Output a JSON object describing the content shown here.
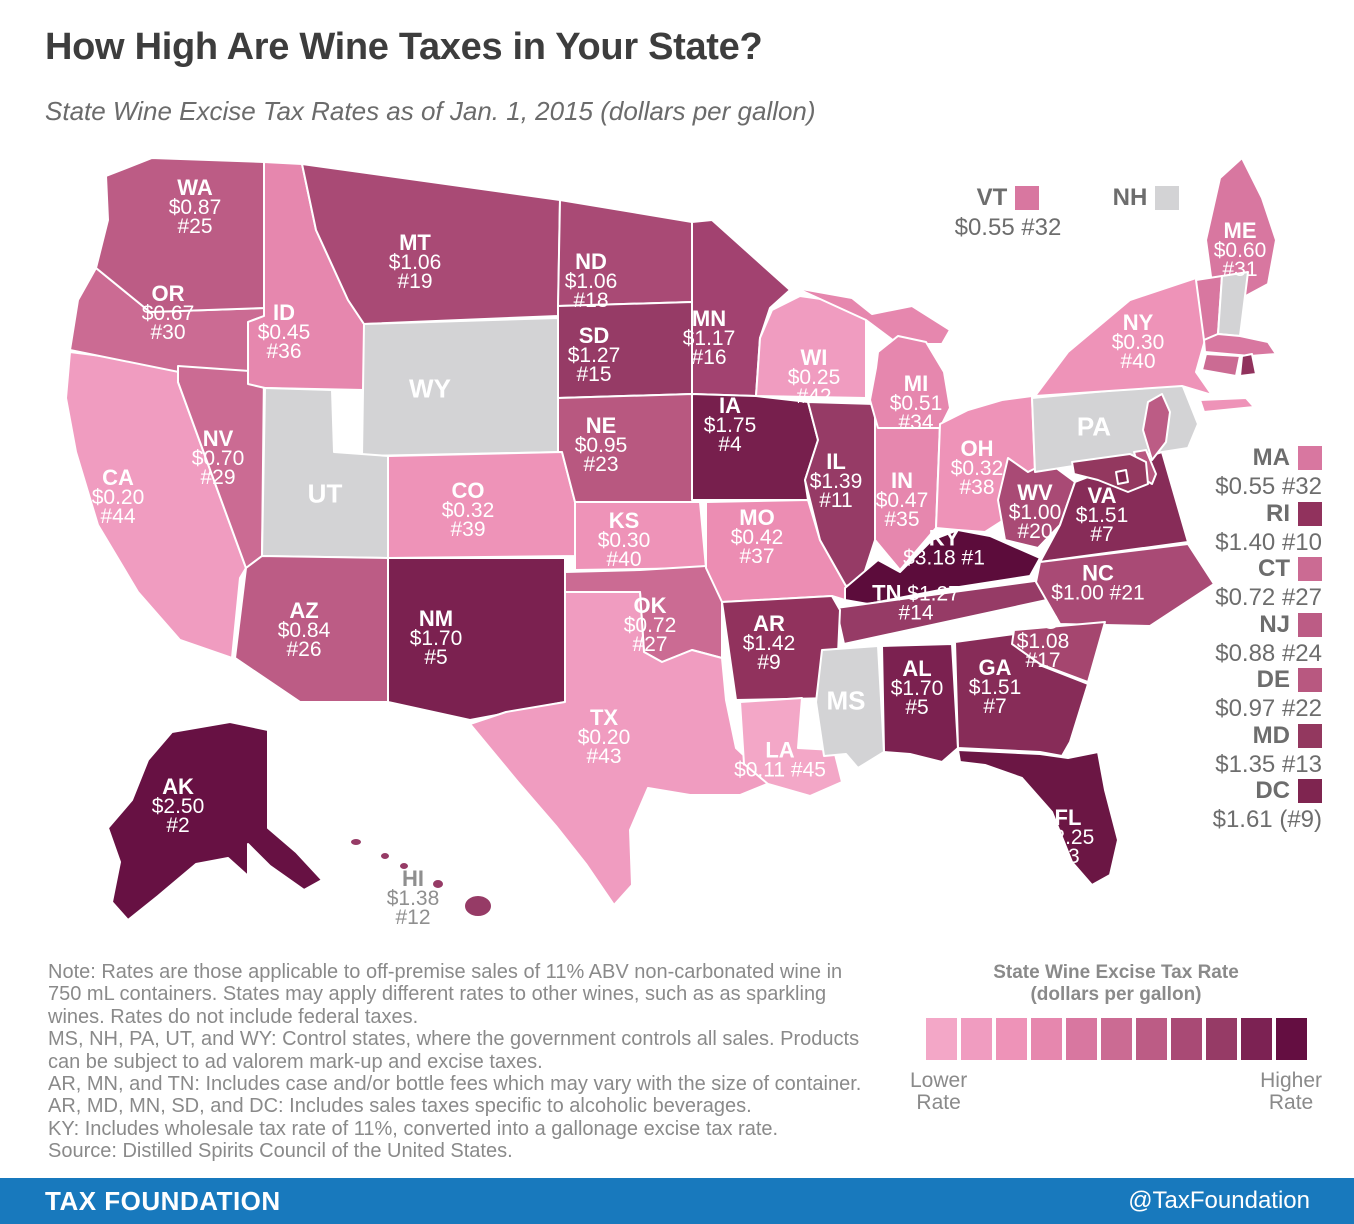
{
  "title": "How High Are Wine Taxes in Your State?",
  "subtitle": "State Wine Excise Tax Rates as of Jan. 1, 2015 (dollars per gallon)",
  "map": {
    "control_color": "#d3d3d5",
    "states": [
      {
        "abbr": "CA",
        "lines": [
          "CA",
          "$0.20",
          "#44"
        ],
        "color": "#f09cc0"
      },
      {
        "abbr": "OR",
        "lines": [
          "OR",
          "$0.67",
          "#30"
        ],
        "color": "#cb6b93"
      },
      {
        "abbr": "WA",
        "lines": [
          "WA",
          "$0.87",
          "#25"
        ],
        "color": "#bc5c85"
      },
      {
        "abbr": "NV",
        "lines": [
          "NV",
          "$0.70",
          "#29"
        ],
        "color": "#cb6b93"
      },
      {
        "abbr": "ID",
        "lines": [
          "ID",
          "$0.45",
          "#36"
        ],
        "color": "#e687ae"
      },
      {
        "abbr": "MT",
        "lines": [
          "MT",
          "$1.06",
          "#19"
        ],
        "color": "#a94a75"
      },
      {
        "abbr": "WY",
        "lines": [
          "WY"
        ],
        "color": "",
        "control": true
      },
      {
        "abbr": "UT",
        "lines": [
          "UT"
        ],
        "color": "",
        "control": true
      },
      {
        "abbr": "CO",
        "lines": [
          "CO",
          "$0.32",
          "#39"
        ],
        "color": "#ee93b8"
      },
      {
        "abbr": "AZ",
        "lines": [
          "AZ",
          "$0.84",
          "#26"
        ],
        "color": "#bc5c85"
      },
      {
        "abbr": "NM",
        "lines": [
          "NM",
          "$1.70",
          "#5"
        ],
        "color": "#7b2150"
      },
      {
        "abbr": "ND",
        "lines": [
          "ND",
          "$1.06",
          "#18"
        ],
        "color": "#a94a75"
      },
      {
        "abbr": "SD",
        "lines": [
          "SD",
          "$1.27",
          "#15"
        ],
        "color": "#963b66"
      },
      {
        "abbr": "NE",
        "lines": [
          "NE",
          "$0.95",
          "#23"
        ],
        "color": "#b85880"
      },
      {
        "abbr": "KS",
        "lines": [
          "KS",
          "$0.30",
          "#40"
        ],
        "color": "#ee93b8"
      },
      {
        "abbr": "OK",
        "lines": [
          "OK",
          "$0.72",
          "#27"
        ],
        "color": "#cb6b93"
      },
      {
        "abbr": "TX",
        "lines": [
          "TX",
          "$0.20",
          "#43"
        ],
        "color": "#f09cc0"
      },
      {
        "abbr": "MN",
        "lines": [
          "MN",
          "$1.17",
          "#16"
        ],
        "color": "#a24270"
      },
      {
        "abbr": "IA",
        "lines": [
          "IA",
          "$1.75",
          "#4"
        ],
        "color": "#771f4d"
      },
      {
        "abbr": "MO",
        "lines": [
          "MO",
          "$0.42",
          "#37"
        ],
        "color": "#ec8db3"
      },
      {
        "abbr": "WI",
        "lines": [
          "WI",
          "$0.25",
          "#42"
        ],
        "color": "#f09cc0"
      },
      {
        "abbr": "IL",
        "lines": [
          "IL",
          "$1.39",
          "#11"
        ],
        "color": "#963b66"
      },
      {
        "abbr": "IN",
        "lines": [
          "IN",
          "$0.47",
          "#35"
        ],
        "color": "#e687ae"
      },
      {
        "abbr": "MI",
        "lines": [
          "MI",
          "$0.51",
          "#34"
        ],
        "color": "#e687ae"
      },
      {
        "abbr": "OH",
        "lines": [
          "OH",
          "$0.32",
          "#38"
        ],
        "color": "#ee93b8"
      },
      {
        "abbr": "KY",
        "lines": [
          "KY",
          "$3.18 #1"
        ],
        "color": "#5c0c3b"
      },
      {
        "abbr": "TN",
        "lines": [
          "TN $1.27",
          "#14"
        ],
        "color": "#963b66"
      },
      {
        "abbr": "AR",
        "lines": [
          "AR",
          "$1.42",
          "#9"
        ],
        "color": "#91325d"
      },
      {
        "abbr": "LA",
        "lines": [
          "LA",
          "$0.11 #45"
        ],
        "color": "#f3a7c7"
      },
      {
        "abbr": "MS",
        "lines": [
          "MS"
        ],
        "color": "",
        "control": true
      },
      {
        "abbr": "AL",
        "lines": [
          "AL",
          "$1.70",
          "#5"
        ],
        "color": "#7b2150"
      },
      {
        "abbr": "GA",
        "lines": [
          "GA",
          "$1.51",
          "#7"
        ],
        "color": "#872c58"
      },
      {
        "abbr": "FL",
        "lines": [
          "FL",
          "$2.25",
          "#3"
        ],
        "color": "#6b1644"
      },
      {
        "abbr": "WV",
        "lines": [
          "WV",
          "$1.00",
          "#20"
        ],
        "color": "#a94a75"
      },
      {
        "abbr": "VA",
        "lines": [
          "VA",
          "$1.51",
          "#7"
        ],
        "color": "#872c58"
      },
      {
        "abbr": "NC",
        "lines": [
          "NC",
          "$1.00 #21"
        ],
        "color": "#a94a75"
      },
      {
        "abbr": "SC",
        "lines": [
          "SC",
          "$1.08",
          "#17"
        ],
        "color": "#a5466f"
      },
      {
        "abbr": "PA",
        "lines": [
          "PA"
        ],
        "color": "",
        "control": true
      },
      {
        "abbr": "NY",
        "lines": [
          "NY",
          "$0.30",
          "#40"
        ],
        "color": "#ee93b8"
      },
      {
        "abbr": "ME",
        "lines": [
          "ME",
          "$0.60",
          "#31"
        ],
        "color": "#d877a0"
      },
      {
        "abbr": "VT",
        "lines": [],
        "color": "#d877a0"
      },
      {
        "abbr": "NH",
        "lines": [],
        "color": "",
        "control": true
      },
      {
        "abbr": "MA",
        "lines": [],
        "color": "#d877a0"
      },
      {
        "abbr": "CT",
        "lines": [],
        "color": "#cb6b93"
      },
      {
        "abbr": "RI",
        "lines": [],
        "color": "#91325d"
      },
      {
        "abbr": "NJ",
        "lines": [],
        "color": "#bc5c85"
      },
      {
        "abbr": "DE",
        "lines": [],
        "color": "#b85880"
      },
      {
        "abbr": "MD",
        "lines": [],
        "color": "#93385f"
      },
      {
        "abbr": "DC",
        "lines": [],
        "color": "#7f2550"
      },
      {
        "abbr": "AK",
        "lines": [
          "AK",
          "$2.50",
          "#2"
        ],
        "color": "#671143"
      },
      {
        "abbr": "HI",
        "lines": [
          "HI",
          "$1.38",
          "#12"
        ],
        "color": "#963b66",
        "label_style": "gray"
      }
    ]
  },
  "top_legend": [
    {
      "abbr": "VT",
      "value": "$0.55 #32"
    },
    {
      "abbr": "NH",
      "value": ""
    }
  ],
  "side_legend": [
    {
      "abbr": "MA",
      "value": "$0.55 #32"
    },
    {
      "abbr": "RI",
      "value": "$1.40 #10"
    },
    {
      "abbr": "CT",
      "value": "$0.72 #27"
    },
    {
      "abbr": "NJ",
      "value": "$0.88 #24"
    },
    {
      "abbr": "DE",
      "value": "$0.97 #22"
    },
    {
      "abbr": "MD",
      "value": "$1.35 #13"
    },
    {
      "abbr": "DC",
      "value": "$1.61 (#9)"
    }
  ],
  "notes": [
    "Note: Rates are those applicable to off-premise sales of 11% ABV non-carbonated wine in",
    "750 mL containers. States may apply different rates to other wines, such as as sparkling",
    "wines. Rates do not include federal taxes.",
    "MS, NH, PA, UT, and WY: Control states, where the government controls all sales. Products",
    "can be subject to ad valorem mark-up and excise taxes.",
    "AR, MN, and TN: Includes case and/or bottle fees which may vary with the size of container.",
    "AR, MD, MN, SD, and DC: Includes sales taxes specific to alcoholic beverages.",
    "KY: Includes wholesale tax rate of 11%, converted into a gallonage excise tax rate.",
    "Source: Distilled Spirits Council of the United States."
  ],
  "scale_legend": {
    "title_line1": "State Wine Excise Tax Rate",
    "title_line2": "(dollars per gallon)",
    "colors": [
      "#f3a7c7",
      "#f09cc0",
      "#ee93b8",
      "#e687ae",
      "#d877a0",
      "#cb6b93",
      "#bc5c85",
      "#a94a75",
      "#963b66",
      "#7c2253",
      "#640e41"
    ],
    "lower_line1": "Lower",
    "lower_line2": "Rate",
    "higher_line1": "Higher",
    "higher_line2": "Rate"
  },
  "footer": {
    "brand": "TAX FOUNDATION",
    "handle": "@TaxFoundation",
    "bar_color": "#1879bd"
  },
  "chart_data": {
    "type": "choropleth",
    "title": "How High Are Wine Taxes in Your State?",
    "subtitle": "State Wine Excise Tax Rates as of Jan. 1, 2015",
    "unit": "dollars per gallon",
    "legend": {
      "low_label": "Lower Rate",
      "high_label": "Higher Rate",
      "steps": 11
    },
    "control_states_note": "MS, NH, PA, UT, WY are control states (no excise rate shown)",
    "states": [
      {
        "abbr": "AK",
        "rate": 2.5,
        "rank": 2
      },
      {
        "abbr": "AL",
        "rate": 1.7,
        "rank": 5
      },
      {
        "abbr": "AR",
        "rate": 1.42,
        "rank": 9
      },
      {
        "abbr": "AZ",
        "rate": 0.84,
        "rank": 26
      },
      {
        "abbr": "CA",
        "rate": 0.2,
        "rank": 44
      },
      {
        "abbr": "CO",
        "rate": 0.32,
        "rank": 39
      },
      {
        "abbr": "CT",
        "rate": 0.72,
        "rank": 27
      },
      {
        "abbr": "DC",
        "rate": 1.61,
        "rank": 9
      },
      {
        "abbr": "DE",
        "rate": 0.97,
        "rank": 22
      },
      {
        "abbr": "FL",
        "rate": 2.25,
        "rank": 3
      },
      {
        "abbr": "GA",
        "rate": 1.51,
        "rank": 7
      },
      {
        "abbr": "HI",
        "rate": 1.38,
        "rank": 12
      },
      {
        "abbr": "IA",
        "rate": 1.75,
        "rank": 4
      },
      {
        "abbr": "ID",
        "rate": 0.45,
        "rank": 36
      },
      {
        "abbr": "IL",
        "rate": 1.39,
        "rank": 11
      },
      {
        "abbr": "IN",
        "rate": 0.47,
        "rank": 35
      },
      {
        "abbr": "KS",
        "rate": 0.3,
        "rank": 40
      },
      {
        "abbr": "KY",
        "rate": 3.18,
        "rank": 1
      },
      {
        "abbr": "LA",
        "rate": 0.11,
        "rank": 45
      },
      {
        "abbr": "MA",
        "rate": 0.55,
        "rank": 32
      },
      {
        "abbr": "MD",
        "rate": 1.35,
        "rank": 13
      },
      {
        "abbr": "ME",
        "rate": 0.6,
        "rank": 31
      },
      {
        "abbr": "MI",
        "rate": 0.51,
        "rank": 34
      },
      {
        "abbr": "MN",
        "rate": 1.17,
        "rank": 16
      },
      {
        "abbr": "MO",
        "rate": 0.42,
        "rank": 37
      },
      {
        "abbr": "MS",
        "rate": null,
        "rank": null
      },
      {
        "abbr": "MT",
        "rate": 1.06,
        "rank": 19
      },
      {
        "abbr": "NC",
        "rate": 1.0,
        "rank": 21
      },
      {
        "abbr": "ND",
        "rate": 1.06,
        "rank": 18
      },
      {
        "abbr": "NE",
        "rate": 0.95,
        "rank": 23
      },
      {
        "abbr": "NH",
        "rate": null,
        "rank": null
      },
      {
        "abbr": "NJ",
        "rate": 0.88,
        "rank": 24
      },
      {
        "abbr": "NM",
        "rate": 1.7,
        "rank": 5
      },
      {
        "abbr": "NV",
        "rate": 0.7,
        "rank": 29
      },
      {
        "abbr": "NY",
        "rate": 0.3,
        "rank": 40
      },
      {
        "abbr": "OH",
        "rate": 0.32,
        "rank": 38
      },
      {
        "abbr": "OK",
        "rate": 0.72,
        "rank": 27
      },
      {
        "abbr": "OR",
        "rate": 0.67,
        "rank": 30
      },
      {
        "abbr": "PA",
        "rate": null,
        "rank": null
      },
      {
        "abbr": "RI",
        "rate": 1.4,
        "rank": 10
      },
      {
        "abbr": "SC",
        "rate": 1.08,
        "rank": 17
      },
      {
        "abbr": "SD",
        "rate": 1.27,
        "rank": 15
      },
      {
        "abbr": "TN",
        "rate": 1.27,
        "rank": 14
      },
      {
        "abbr": "TX",
        "rate": 0.2,
        "rank": 43
      },
      {
        "abbr": "UT",
        "rate": null,
        "rank": null
      },
      {
        "abbr": "VA",
        "rate": 1.51,
        "rank": 7
      },
      {
        "abbr": "VT",
        "rate": 0.55,
        "rank": 32
      },
      {
        "abbr": "WA",
        "rate": 0.87,
        "rank": 25
      },
      {
        "abbr": "WI",
        "rate": 0.25,
        "rank": 42
      },
      {
        "abbr": "WV",
        "rate": 1.0,
        "rank": 20
      },
      {
        "abbr": "WY",
        "rate": null,
        "rank": null
      }
    ]
  }
}
